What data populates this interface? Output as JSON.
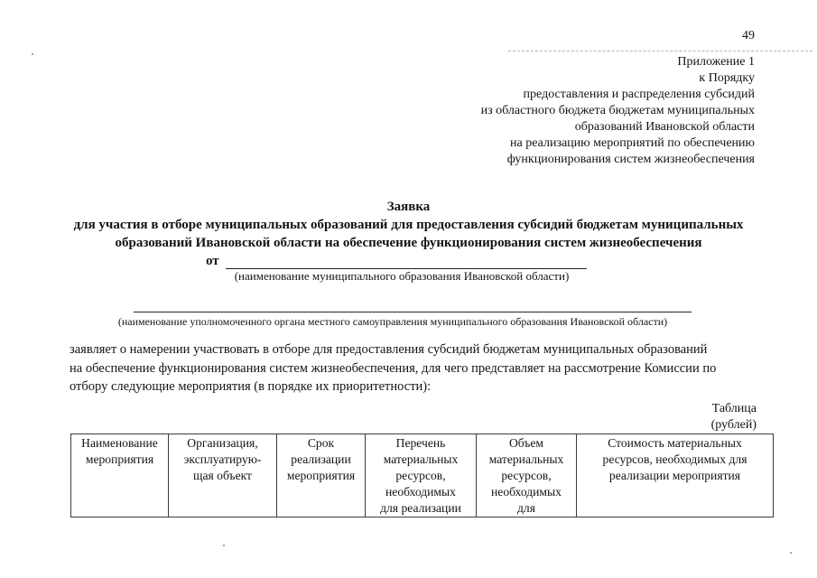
{
  "page": {
    "number": "49"
  },
  "header": {
    "appendix_block": "Приложение 1\nк Порядку\nпредоставления и распределения субсидий\nиз областного бюджета бюджетам муниципальных\nобразований Ивановской области\nна реализацию мероприятий по обеспечению\nфункционирования систем жизнеобеспечения"
  },
  "title": {
    "heading": "Заявка",
    "subtitle": "для участия в отборе муниципальных образований для предоставления субсидий бюджетам муниципальных\nобразований Ивановской области на обеспечение функционирования систем жизнеобеспечения",
    "from_label": "от",
    "municipal_caption": "(наименование муниципального образования Ивановской области)",
    "authority_caption": "(наименование уполномоченного органа местного самоуправления муниципального образования Ивановской области)"
  },
  "body": {
    "paragraph": "заявляет о намерении участвовать в отборе для предоставления субсидий бюджетам муниципальных образований\nна обеспечение функционирования систем жизнеобеспечения, для чего представляет на рассмотрение Комиссии по\nотбору следующие мероприятия (в порядке их приоритетности):"
  },
  "table": {
    "label": "Таблица",
    "unit": "(рублей)",
    "headers": [
      "Наименование\nмероприятия",
      "Организация,\nэксплуатирую-\nщая объект",
      "Срок\nреализации\nмероприятия",
      "Перечень\nматериальных\nресурсов,\nнеобходимых\nдля реализации",
      "Объем\nматериальных\nресурсов,\nнеобходимых\nдля",
      "Стоимость материальных\nресурсов, необходимых для\nреализации мероприятия"
    ]
  }
}
